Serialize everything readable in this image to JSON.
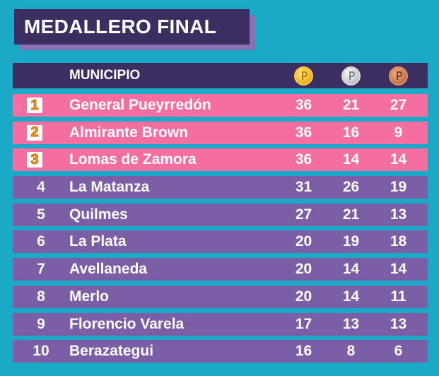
{
  "title": "MEDALLERO FINAL",
  "header": {
    "municipio_label": "MUNICIPIO",
    "medals": [
      {
        "icon": "gold-medal-icon",
        "color": "#f2b31b"
      },
      {
        "icon": "silver-medal-icon",
        "color": "#c4c6c8"
      },
      {
        "icon": "bronze-medal-icon",
        "color": "#c9764a"
      }
    ]
  },
  "colors": {
    "background": "#1aa9c6",
    "dark_purple": "#3d2e61",
    "podium_pink": "#f46ea2",
    "row_purple": "#7c5ea6",
    "rank_orange": "#f39a1c"
  },
  "rows": [
    {
      "rank": "1",
      "name": "General Pueyrredón",
      "gold": "36",
      "silver": "21",
      "bronze": "27",
      "podium": true
    },
    {
      "rank": "2",
      "name": "Almirante Brown",
      "gold": "36",
      "silver": "16",
      "bronze": "9",
      "podium": true
    },
    {
      "rank": "3",
      "name": "Lomas de Zamora",
      "gold": "36",
      "silver": "14",
      "bronze": "14",
      "podium": true
    },
    {
      "rank": "4",
      "name": "La Matanza",
      "gold": "31",
      "silver": "26",
      "bronze": "19",
      "podium": false
    },
    {
      "rank": "5",
      "name": "Quilmes",
      "gold": "27",
      "silver": "21",
      "bronze": "13",
      "podium": false
    },
    {
      "rank": "6",
      "name": "La Plata",
      "gold": "20",
      "silver": "19",
      "bronze": "18",
      "podium": false
    },
    {
      "rank": "7",
      "name": "Avellaneda",
      "gold": "20",
      "silver": "14",
      "bronze": "14",
      "podium": false
    },
    {
      "rank": "8",
      "name": "Merlo",
      "gold": "20",
      "silver": "14",
      "bronze": "11",
      "podium": false
    },
    {
      "rank": "9",
      "name": "Florencio Varela",
      "gold": "17",
      "silver": "13",
      "bronze": "13",
      "podium": false
    },
    {
      "rank": "10",
      "name": "Berazategui",
      "gold": "16",
      "silver": "8",
      "bronze": "6",
      "podium": false
    }
  ]
}
